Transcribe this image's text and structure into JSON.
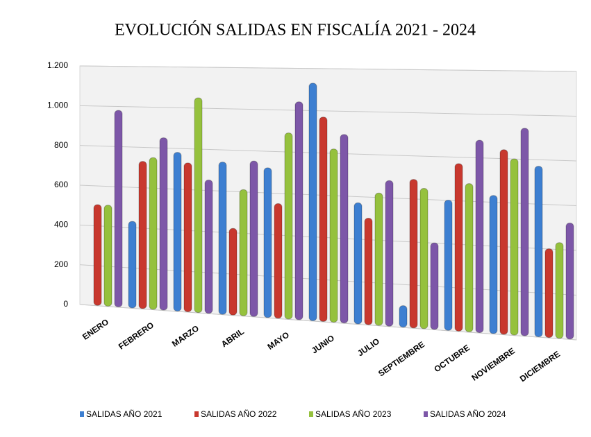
{
  "chart_data": {
    "type": "bar",
    "title": "EVOLUCIÓN SALIDAS EN FISCALÍA 2021 - 2024",
    "categories": [
      "ENERO",
      "FEBRERO",
      "MARZO",
      "ABRIL",
      "MAYO",
      "JUNIO",
      "JULIO",
      "SEPTIEMBRE",
      "OCTUBRE",
      "NOVIEMBRE",
      "DICIEMBRE"
    ],
    "series": [
      {
        "name": "SALIDAS AÑO 2021",
        "color": "#3d7fd1",
        "values": [
          null,
          430,
          780,
          740,
          720,
          1130,
          570,
          100,
          600,
          630,
          770
        ]
      },
      {
        "name": "SALIDAS AÑO 2022",
        "color": "#c8382e",
        "values": [
          505,
          730,
          730,
          420,
          550,
          970,
          500,
          690,
          770,
          840,
          400
        ]
      },
      {
        "name": "SALIDAS AÑO 2023",
        "color": "#95c13d",
        "values": [
          505,
          750,
          1050,
          610,
          890,
          820,
          620,
          650,
          680,
          800,
          430
        ]
      },
      {
        "name": "SALIDAS AÑO 2024",
        "color": "#7d57a8",
        "values": [
          980,
          850,
          650,
          750,
          1040,
          890,
          680,
          400,
          880,
          940,
          520
        ]
      }
    ],
    "ylim": [
      0,
      1200
    ],
    "yticks": [
      0,
      200,
      400,
      600,
      800,
      {
        "value": 1000,
        "label": "1.000"
      },
      {
        "value": 1200,
        "label": "1.200"
      }
    ],
    "grid": true,
    "legend": "bottom"
  }
}
